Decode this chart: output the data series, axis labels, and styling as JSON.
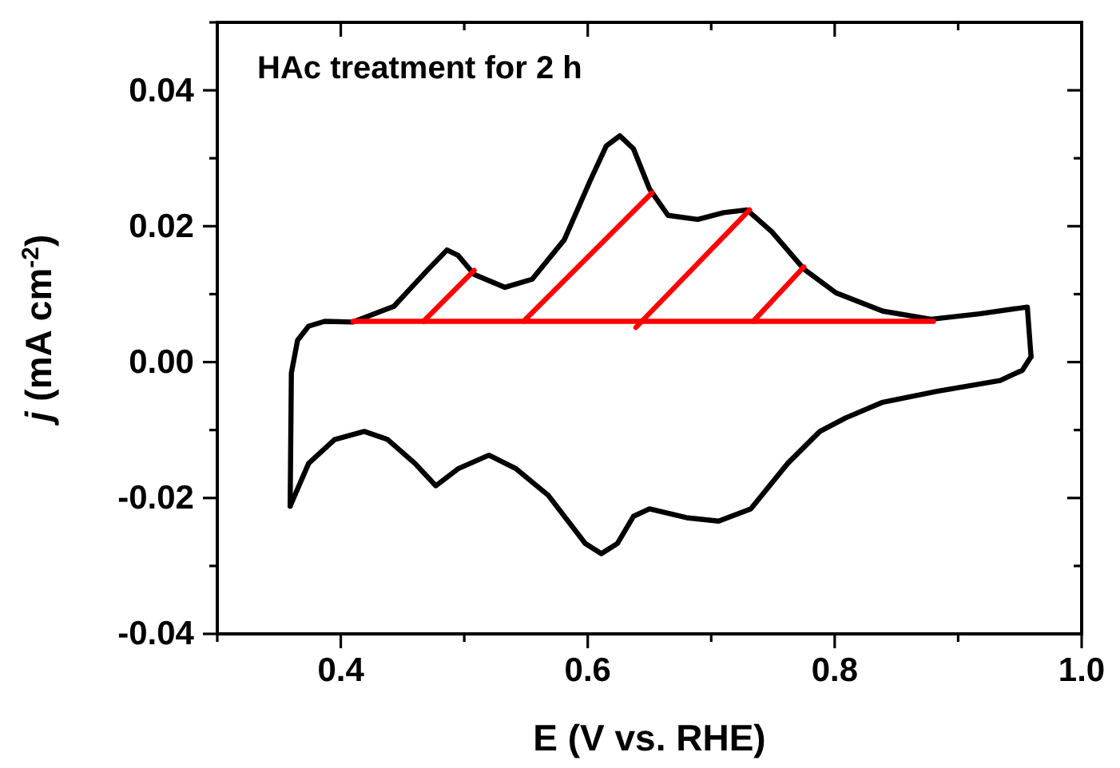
{
  "chart_data": {
    "type": "line",
    "xlabel": "E (V vs. RHE)",
    "ylabel": "j (mA cm$^{-2}$)",
    "annotations": [
      "HAc treatment for 2 h"
    ],
    "xlim": [
      0.3,
      1.0
    ],
    "ylim": [
      -0.04,
      0.05
    ],
    "xticks": [
      {
        "value": 0.3,
        "label": null
      },
      {
        "value": 0.4,
        "label": "0.4"
      },
      {
        "value": 0.5,
        "label": null
      },
      {
        "value": 0.6,
        "label": "0.6"
      },
      {
        "value": 0.7,
        "label": null
      },
      {
        "value": 0.8,
        "label": "0.8"
      },
      {
        "value": 0.9,
        "label": null
      },
      {
        "value": 1.0,
        "label": "1.0"
      }
    ],
    "yticks": [
      {
        "value": -0.04,
        "label": "-0.04"
      },
      {
        "value": -0.03,
        "label": null
      },
      {
        "value": -0.02,
        "label": "-0.02"
      },
      {
        "value": -0.01,
        "label": null
      },
      {
        "value": 0,
        "label": "0.00"
      },
      {
        "value": 0.01,
        "label": null
      },
      {
        "value": 0.02,
        "label": "0.02"
      },
      {
        "value": 0.03,
        "label": null
      },
      {
        "value": 0.04,
        "label": "0.04"
      },
      {
        "value": 0.05,
        "label": null
      }
    ],
    "grid": false,
    "marker": "none",
    "line_style": "solid",
    "series": [
      {
        "color": "#000000",
        "x": [
          0.359,
          0.36,
          0.365,
          0.374,
          0.387,
          0.41,
          0.443,
          0.469,
          0.486,
          0.495,
          0.508,
          0.533,
          0.555,
          0.581,
          0.602,
          0.615,
          0.626,
          0.637,
          0.65,
          0.665,
          0.689,
          0.71,
          0.729,
          0.749,
          0.775,
          0.801,
          0.839,
          0.878,
          0.917,
          0.956,
          0.958,
          0.959
        ],
        "values": [
          -0.0212,
          -0.0016,
          0.0032,
          0.0053,
          0.006,
          0.0059,
          0.0082,
          0.0133,
          0.0165,
          0.0157,
          0.0129,
          0.011,
          0.0122,
          0.018,
          0.0267,
          0.0318,
          0.0333,
          0.0314,
          0.0255,
          0.0216,
          0.021,
          0.022,
          0.0224,
          0.0192,
          0.0137,
          0.0102,
          0.0075,
          0.0063,
          0.0071,
          0.0081,
          0.0032,
          0.0008
        ]
      },
      {
        "color": "#000000",
        "x": [
          0.359,
          0.374,
          0.395,
          0.419,
          0.438,
          0.46,
          0.477,
          0.495,
          0.52,
          0.542,
          0.568,
          0.598,
          0.611,
          0.624,
          0.637,
          0.65,
          0.68,
          0.706,
          0.732,
          0.762,
          0.788,
          0.809,
          0.839,
          0.883,
          0.934,
          0.952,
          0.959
        ],
        "values": [
          -0.0212,
          -0.0149,
          -0.0114,
          -0.0102,
          -0.0114,
          -0.0149,
          -0.0182,
          -0.0157,
          -0.0137,
          -0.0157,
          -0.0196,
          -0.0267,
          -0.0282,
          -0.0267,
          -0.0227,
          -0.0216,
          -0.0229,
          -0.0234,
          -0.0216,
          -0.0149,
          -0.0102,
          -0.0082,
          -0.0059,
          -0.0043,
          -0.0027,
          -0.0012,
          0.0008
        ]
      },
      {
        "color": "#ff0000",
        "x": [
          0.41,
          0.88
        ],
        "values": [
          0.006,
          0.006
        ]
      },
      {
        "color": "#ff0000",
        "x": [
          0.467,
          0.508
        ],
        "values": [
          0.006,
          0.0135
        ]
      },
      {
        "color": "#ff0000",
        "x": [
          0.548,
          0.652
        ],
        "values": [
          0.006,
          0.0249
        ]
      },
      {
        "color": "#ff0000",
        "x": [
          0.639,
          0.731
        ],
        "values": [
          0.0051,
          0.0224
        ]
      },
      {
        "color": "#ff0000",
        "x": [
          0.734,
          0.775
        ],
        "values": [
          0.006,
          0.014
        ]
      }
    ]
  }
}
